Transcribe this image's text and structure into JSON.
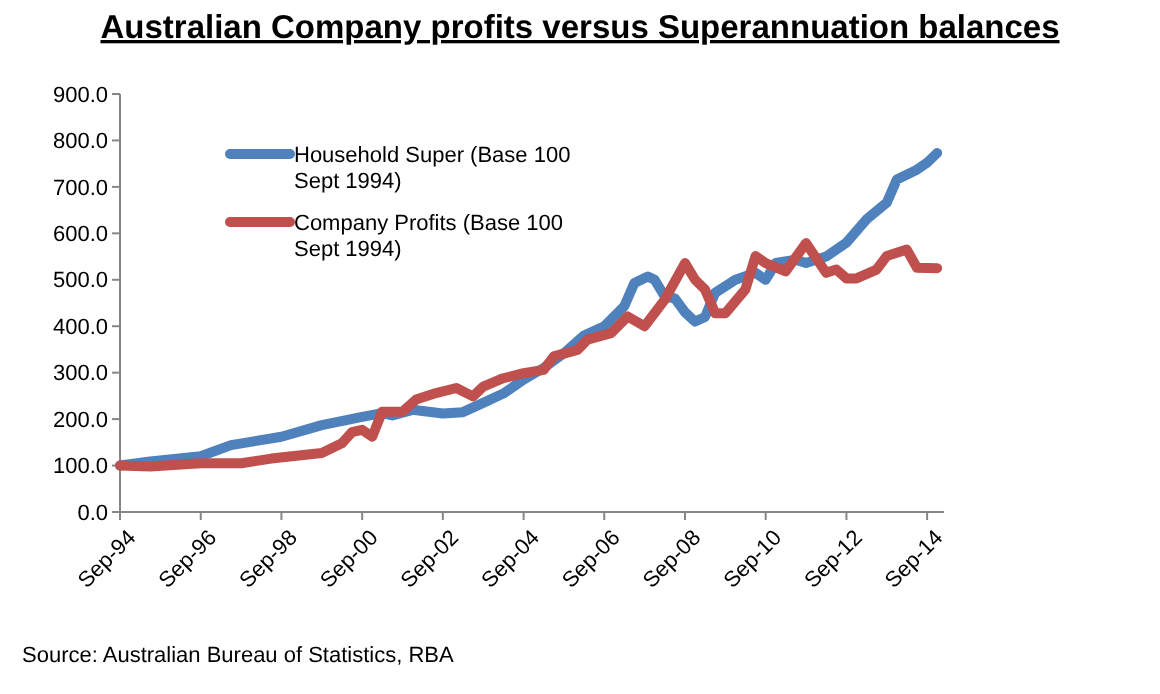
{
  "chart_data": {
    "type": "line",
    "title": "Australian Company profits versus Superannuation balances",
    "annotations": [
      "Source: Australian Bureau of Statistics, RBA"
    ],
    "xlim": [
      "1994-09",
      "2015-02"
    ],
    "xticks": [
      {
        "value": "1994-09",
        "label": "Sep-94"
      },
      {
        "value": "1996-09",
        "label": "Sep-96"
      },
      {
        "value": "1998-09",
        "label": "Sep-98"
      },
      {
        "value": "2000-09",
        "label": "Sep-00"
      },
      {
        "value": "2002-09",
        "label": "Sep-02"
      },
      {
        "value": "2004-09",
        "label": "Sep-04"
      },
      {
        "value": "2006-09",
        "label": "Sep-06"
      },
      {
        "value": "2008-09",
        "label": "Sep-08"
      },
      {
        "value": "2010-09",
        "label": "Sep-10"
      },
      {
        "value": "2012-09",
        "label": "Sep-12"
      },
      {
        "value": "2014-09",
        "label": "Sep-14"
      }
    ],
    "ylim": [
      0,
      900
    ],
    "yticks": [
      {
        "value": 0,
        "label": "0.0"
      },
      {
        "value": 100,
        "label": "100.0"
      },
      {
        "value": 200,
        "label": "200.0"
      },
      {
        "value": 300,
        "label": "300.0"
      },
      {
        "value": 400,
        "label": "400.0"
      },
      {
        "value": 500,
        "label": "500.0"
      },
      {
        "value": 600,
        "label": "600.0"
      },
      {
        "value": 700,
        "label": "700.0"
      },
      {
        "value": 800,
        "label": "800.0"
      },
      {
        "value": 900,
        "label": "900.0"
      }
    ],
    "grid": false,
    "legend": "top left",
    "line_style": "solid",
    "series": [
      {
        "name": "Household Super (Base 100 Sept 1994)",
        "color": "#4f81bd",
        "x": [
          "1994-09",
          "1995-06",
          "1996-09",
          "1997-06",
          "1998-09",
          "1999-09",
          "2000-09",
          "2001-03",
          "2001-06",
          "2001-12",
          "2002-09",
          "2003-03",
          "2003-09",
          "2004-03",
          "2004-09",
          "2005-03",
          "2005-09",
          "2006-03",
          "2006-09",
          "2007-03",
          "2007-06",
          "2007-10",
          "2007-12",
          "2008-03",
          "2008-06",
          "2008-09",
          "2008-12",
          "2009-03",
          "2009-06",
          "2009-12",
          "2010-06",
          "2010-09",
          "2010-12",
          "2011-06",
          "2011-09",
          "2012-03",
          "2012-06",
          "2012-09",
          "2013-03",
          "2013-09",
          "2013-12",
          "2014-06",
          "2014-09",
          "2014-12"
        ],
        "values": [
          100,
          109,
          120,
          144,
          162,
          187,
          205,
          213,
          208,
          220,
          212,
          215,
          235,
          255,
          285,
          310,
          342,
          380,
          400,
          443,
          493,
          507,
          500,
          464,
          460,
          430,
          410,
          420,
          472,
          500,
          515,
          500,
          536,
          543,
          536,
          550,
          565,
          580,
          630,
          666,
          716,
          737,
          752,
          773
        ]
      },
      {
        "name": "Company Profits (Base 100 Sept 1994)",
        "color": "#c0504d",
        "x": [
          "1994-09",
          "1995-06",
          "1996-09",
          "1997-09",
          "1998-06",
          "1999-09",
          "2000-03",
          "2000-06",
          "2000-09",
          "2000-12",
          "2001-03",
          "2001-09",
          "2002-01",
          "2002-07",
          "2003-01",
          "2003-06",
          "2003-09",
          "2004-03",
          "2004-09",
          "2005-03",
          "2005-06",
          "2006-01",
          "2006-04",
          "2006-11",
          "2007-04",
          "2007-09",
          "2008-03",
          "2008-09",
          "2008-12",
          "2009-03",
          "2009-06",
          "2009-09",
          "2010-03",
          "2010-06",
          "2010-09",
          "2011-03",
          "2011-09",
          "2012-03",
          "2012-06",
          "2012-09",
          "2012-12",
          "2013-06",
          "2013-09",
          "2014-03",
          "2014-06",
          "2014-12"
        ],
        "values": [
          100,
          98,
          105,
          105,
          115,
          127,
          148,
          172,
          177,
          162,
          216,
          216,
          242,
          256,
          267,
          249,
          270,
          288,
          299,
          306,
          335,
          349,
          371,
          385,
          421,
          400,
          457,
          536,
          500,
          479,
          428,
          428,
          479,
          551,
          536,
          518,
          579,
          515,
          522,
          503,
          503,
          522,
          551,
          565,
          526,
          525
        ]
      }
    ]
  }
}
